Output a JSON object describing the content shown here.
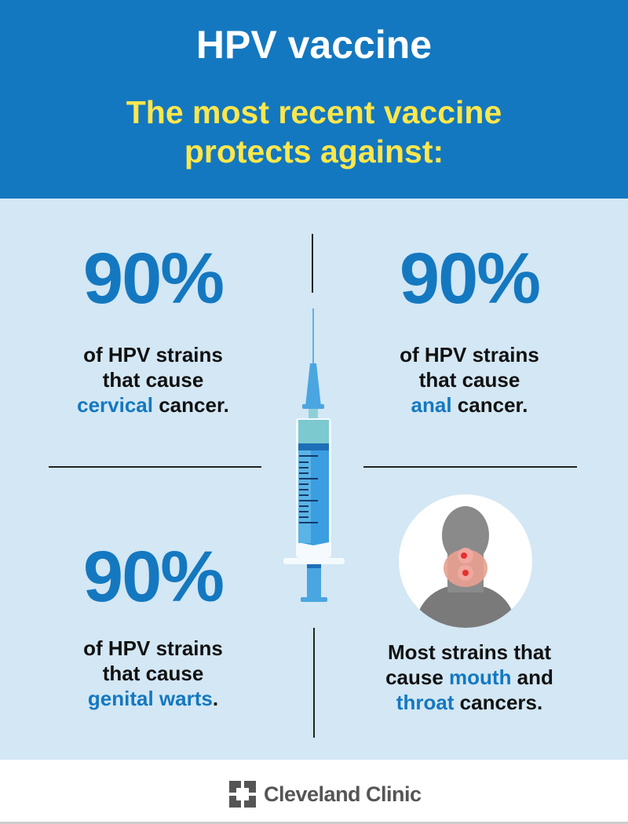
{
  "header": {
    "title": "HPV vaccine",
    "subtitle_line1": "The most recent vaccine",
    "subtitle_line2": "protects against:"
  },
  "quadrants": [
    {
      "percent": "90%",
      "line1": "of HPV strains",
      "line2": "that cause",
      "highlight": "cervical",
      "rest": " cancer."
    },
    {
      "percent": "90%",
      "line1": "of HPV strains",
      "line2": "that cause",
      "highlight": "anal",
      "rest": " cancer."
    },
    {
      "percent": "90%",
      "line1": "of HPV strains",
      "line2": "that cause",
      "highlight": "genital warts",
      "rest": "."
    },
    {
      "line1": "Most strains that",
      "line2_pre": "cause ",
      "highlight1": "mouth",
      "line2_post": " and",
      "highlight2": "throat",
      "rest": " cancers."
    }
  ],
  "footer": {
    "brand": "Cleveland Clinic"
  },
  "colors": {
    "header": "#1478c0",
    "accent": "#1478c0",
    "subtitle": "#fde74c",
    "panel": "#d3e7f4"
  },
  "icons": [
    "syringe-icon",
    "head-throat-icon",
    "cleveland-clinic-logo-icon"
  ]
}
